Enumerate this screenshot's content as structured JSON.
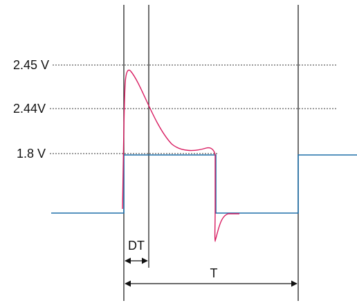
{
  "levels": {
    "v245": "2.45 V",
    "v244": "2.44V",
    "v18": "1.8 V"
  },
  "intervals": {
    "dt": "DT",
    "t": "T"
  },
  "colors": {
    "ideal_signal": "#1f6fa8",
    "overshoot_signal": "#d81b60",
    "reference_line": "#333333"
  }
}
